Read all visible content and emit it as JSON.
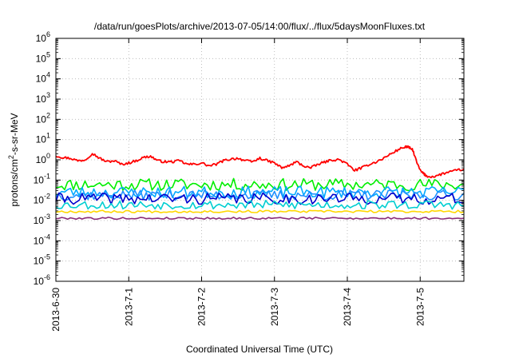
{
  "chart_data": {
    "type": "line",
    "title": "/data/run/goesPlots/archive/2013-07-05/14:00/flux/../flux/5daysMoonFluxes.txt",
    "xlabel": "Coordinated Universal Time (UTC)",
    "ylabel_parts": [
      "protons/cm",
      "2",
      "-s-sr-MeV"
    ],
    "y_scale": "log",
    "ylim_exp": [
      -6,
      6
    ],
    "y_ticks": [
      {
        "exp": -6,
        "base": "10",
        "sup": "-6"
      },
      {
        "exp": -5,
        "base": "10",
        "sup": "-5"
      },
      {
        "exp": -4,
        "base": "10",
        "sup": "-4"
      },
      {
        "exp": -3,
        "base": "10",
        "sup": "-3"
      },
      {
        "exp": -2,
        "base": "10",
        "sup": "-2"
      },
      {
        "exp": -1,
        "base": "10",
        "sup": "-1"
      },
      {
        "exp": 0,
        "base": "10",
        "sup": "0"
      },
      {
        "exp": 1,
        "base": "10",
        "sup": "1"
      },
      {
        "exp": 2,
        "base": "10",
        "sup": "2"
      },
      {
        "exp": 3,
        "base": "10",
        "sup": "3"
      },
      {
        "exp": 4,
        "base": "10",
        "sup": "4"
      },
      {
        "exp": 5,
        "base": "10",
        "sup": "5"
      },
      {
        "exp": 6,
        "base": "10",
        "sup": "6"
      }
    ],
    "x_range_days": [
      0,
      5.6
    ],
    "x_ticks": [
      {
        "day": 0,
        "label": "2013-6-30"
      },
      {
        "day": 1,
        "label": "2013-7-1"
      },
      {
        "day": 2,
        "label": "2013-7-2"
      },
      {
        "day": 3,
        "label": "2013-7-3"
      },
      {
        "day": 4,
        "label": "2013-7-4"
      },
      {
        "day": 5,
        "label": "2013-7-5"
      }
    ],
    "grid": true,
    "series": [
      {
        "color": "#ff0000",
        "x": [
          0,
          0.1,
          0.2,
          0.3,
          0.4,
          0.5,
          0.6,
          0.7,
          0.8,
          0.9,
          1,
          1.1,
          1.2,
          1.3,
          1.4,
          1.5,
          1.6,
          1.7,
          1.8,
          1.9,
          2,
          2.1,
          2.2,
          2.3,
          2.4,
          2.5,
          2.6,
          2.7,
          2.8,
          2.9,
          3,
          3.1,
          3.2,
          3.3,
          3.4,
          3.5,
          3.6,
          3.7,
          3.8,
          3.9,
          4,
          4.1,
          4.2,
          4.3,
          4.4,
          4.5,
          4.6,
          4.7,
          4.8,
          4.85,
          4.9,
          4.95,
          5,
          5.05,
          5.1,
          5.2,
          5.3,
          5.4,
          5.5,
          5.6
        ],
        "values": [
          1.6,
          1.3,
          1.2,
          0.9,
          1.0,
          2.1,
          1.2,
          0.8,
          0.9,
          0.6,
          0.7,
          0.9,
          1.3,
          1.5,
          0.9,
          0.8,
          0.8,
          0.9,
          0.6,
          0.6,
          0.7,
          0.5,
          0.6,
          0.9,
          1.1,
          1.2,
          0.9,
          0.8,
          1.2,
          0.9,
          0.7,
          0.4,
          0.5,
          0.8,
          0.5,
          0.4,
          0.6,
          0.8,
          1.0,
          1.0,
          0.6,
          0.3,
          0.4,
          0.6,
          0.8,
          1.2,
          2.0,
          3.2,
          4.5,
          4.0,
          3.0,
          0.8,
          0.3,
          0.2,
          0.15,
          0.15,
          0.2,
          0.25,
          0.3,
          0.35
        ],
        "jitter": 0.12
      },
      {
        "color": "#00ee00",
        "base": 0.06,
        "amp": 0.3,
        "x_start": 0,
        "x_end": 5.6,
        "n": 140,
        "seed": 11
      },
      {
        "color": "#00aaff",
        "base": 0.025,
        "amp": 0.3,
        "x_start": 0,
        "x_end": 5.6,
        "n": 140,
        "seed": 23
      },
      {
        "color": "#1e90ff",
        "base": 0.018,
        "amp": 0.25,
        "x_start": 0,
        "x_end": 5.6,
        "n": 140,
        "seed": 37
      },
      {
        "color": "#0000cc",
        "base": 0.012,
        "amp": 0.28,
        "x_start": 0,
        "x_end": 5.6,
        "n": 140,
        "seed": 41
      },
      {
        "color": "#00ced1",
        "base": 0.006,
        "amp": 0.22,
        "x_start": 0,
        "x_end": 5.6,
        "n": 140,
        "seed": 53
      },
      {
        "color": "#ffd700",
        "base": 0.0028,
        "amp": 0.06,
        "x_start": 0,
        "x_end": 5.6,
        "n": 140,
        "seed": 67
      },
      {
        "color": "#8b2d7a",
        "base": 0.0013,
        "amp": 0.05,
        "x_start": 0,
        "x_end": 5.6,
        "n": 140,
        "seed": 79
      }
    ]
  }
}
